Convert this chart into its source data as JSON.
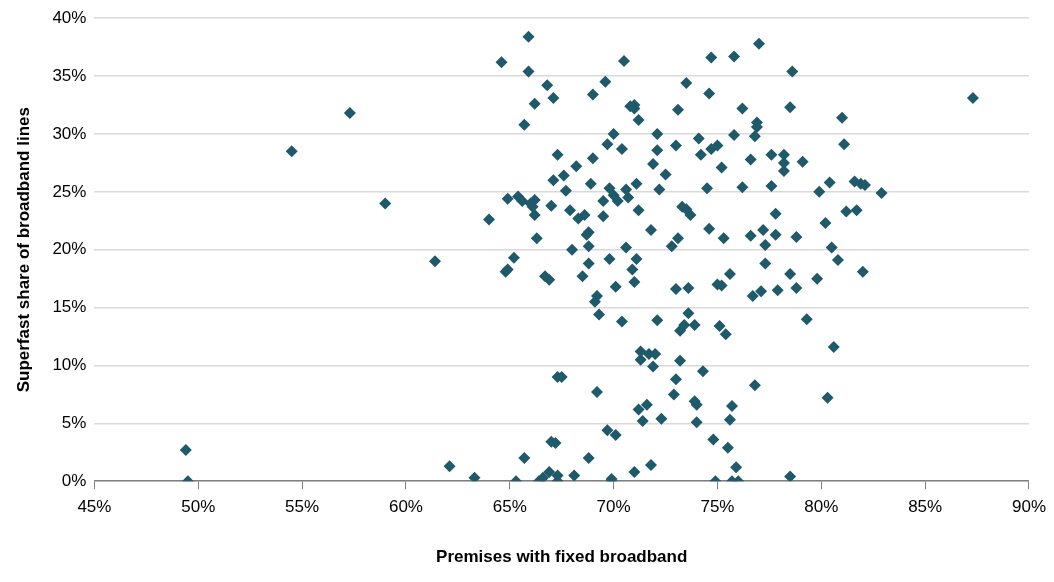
{
  "chart_data": {
    "type": "scatter",
    "xlabel": "Premises with fixed broadband",
    "ylabel": "Superfast share of broadband lines",
    "xlim": [
      45,
      90
    ],
    "ylim": [
      0,
      40
    ],
    "xticks": [
      {
        "value": 45,
        "label": "45%"
      },
      {
        "value": 50,
        "label": "50%"
      },
      {
        "value": 55,
        "label": "55%"
      },
      {
        "value": 60,
        "label": "60%"
      },
      {
        "value": 65,
        "label": "65%"
      },
      {
        "value": 70,
        "label": "70%"
      },
      {
        "value": 75,
        "label": "75%"
      },
      {
        "value": 80,
        "label": "80%"
      },
      {
        "value": 85,
        "label": "85%"
      },
      {
        "value": 90,
        "label": "90%"
      }
    ],
    "yticks": [
      {
        "value": 0,
        "label": "0%"
      },
      {
        "value": 5,
        "label": "5%"
      },
      {
        "value": 10,
        "label": "10%"
      },
      {
        "value": 15,
        "label": "15%"
      },
      {
        "value": 20,
        "label": "20%"
      },
      {
        "value": 25,
        "label": "25%"
      },
      {
        "value": 30,
        "label": "30%"
      },
      {
        "value": 35,
        "label": "35%"
      },
      {
        "value": 40,
        "label": "40%"
      }
    ],
    "grid": "y",
    "legend": false,
    "marker": "diamond",
    "series": [
      {
        "color": "#1f5a6a",
        "x": [
          49.4,
          49.5,
          54.5,
          57.3,
          59.0,
          61.4,
          62.1,
          63.3,
          64.0,
          64.6,
          64.9,
          64.8,
          64.9,
          65.2,
          65.3,
          65.4,
          65.6,
          65.7,
          65.7,
          65.9,
          65.9,
          66.0,
          66.1,
          66.2,
          66.2,
          66.2,
          66.3,
          66.4,
          66.6,
          66.7,
          66.8,
          66.9,
          67.0,
          67.0,
          66.9,
          67.1,
          67.1,
          67.2,
          67.3,
          67.3,
          67.3,
          67.3,
          67.5,
          67.6,
          67.7,
          67.9,
          68.0,
          68.1,
          68.2,
          68.3,
          68.5,
          68.6,
          68.7,
          68.8,
          68.8,
          68.8,
          68.8,
          68.9,
          69.0,
          69.0,
          69.1,
          69.2,
          69.2,
          69.3,
          69.5,
          69.5,
          69.6,
          69.7,
          69.7,
          69.8,
          69.8,
          69.9,
          69.9,
          70.0,
          70.0,
          70.1,
          70.1,
          70.2,
          70.4,
          70.4,
          70.5,
          70.6,
          70.6,
          70.7,
          70.8,
          70.9,
          71.0,
          71.0,
          71.0,
          71.0,
          71.1,
          71.1,
          71.2,
          71.2,
          71.2,
          71.3,
          71.3,
          71.4,
          71.6,
          71.7,
          71.8,
          71.8,
          71.9,
          71.9,
          72.0,
          72.1,
          72.1,
          72.1,
          72.2,
          72.3,
          72.5,
          72.8,
          72.9,
          73.0,
          73.0,
          73.0,
          73.1,
          73.1,
          73.2,
          73.2,
          73.3,
          73.4,
          73.5,
          73.5,
          73.6,
          73.6,
          73.7,
          73.9,
          73.9,
          74.0,
          74.0,
          74.1,
          74.2,
          74.3,
          74.5,
          74.6,
          74.6,
          74.7,
          74.7,
          74.8,
          74.9,
          75.0,
          75.0,
          75.1,
          75.2,
          75.2,
          75.3,
          75.4,
          75.5,
          75.6,
          75.6,
          75.7,
          75.7,
          75.8,
          75.8,
          75.9,
          76.0,
          76.2,
          76.2,
          76.6,
          76.6,
          76.7,
          76.8,
          76.8,
          76.9,
          76.9,
          77.0,
          77.1,
          77.2,
          77.3,
          77.3,
          77.6,
          77.6,
          77.8,
          77.8,
          77.9,
          78.2,
          78.2,
          78.2,
          78.5,
          78.5,
          78.5,
          78.6,
          78.8,
          78.8,
          79.1,
          79.3,
          79.8,
          79.9,
          80.2,
          80.3,
          80.4,
          80.5,
          80.6,
          80.8,
          81.0,
          81.1,
          81.2,
          81.6,
          81.9,
          82.1,
          82.0,
          81.7,
          82.9,
          87.3
        ],
        "values": [
          2.7,
          0,
          28.5,
          31.8,
          24.0,
          19.0,
          1.3,
          0.3,
          22.6,
          36.2,
          24.4,
          18.1,
          18.3,
          19.3,
          0,
          24.6,
          24.2,
          2.0,
          30.8,
          38.4,
          35.4,
          24.0,
          23.7,
          32.6,
          24.3,
          23.0,
          21.0,
          0,
          0.3,
          17.7,
          34.2,
          17.4,
          23.8,
          3.4,
          0.8,
          33.1,
          26.0,
          3.3,
          28.2,
          0.5,
          0,
          9.0,
          9.0,
          26.4,
          25.1,
          23.4,
          20.0,
          0.5,
          27.2,
          22.7,
          17.7,
          23.0,
          21.3,
          20.3,
          21.5,
          18.8,
          2.0,
          25.7,
          27.9,
          33.4,
          15.5,
          7.7,
          16.0,
          14.4,
          24.2,
          22.9,
          34.5,
          29.1,
          4.4,
          19.2,
          25.3,
          0.2,
          0,
          30.0,
          24.7,
          4.0,
          16.8,
          24.2,
          13.8,
          28.7,
          36.3,
          20.2,
          25.2,
          24.5,
          32.4,
          18.3,
          17.2,
          32.5,
          32.2,
          0.8,
          19.2,
          25.7,
          6.2,
          23.4,
          31.2,
          11.2,
          10.5,
          5.2,
          6.6,
          11.0,
          1.4,
          21.7,
          27.4,
          9.9,
          11.0,
          13.9,
          30.0,
          28.6,
          25.2,
          5.4,
          26.5,
          20.3,
          7.5,
          8.8,
          29.0,
          16.6,
          32.1,
          21.0,
          13.0,
          10.4,
          23.7,
          13.5,
          34.4,
          23.5,
          14.5,
          16.7,
          23.0,
          13.5,
          6.9,
          6.6,
          5.1,
          29.6,
          28.2,
          9.5,
          25.3,
          21.8,
          33.5,
          28.7,
          36.6,
          3.6,
          0,
          29.0,
          17.0,
          13.4,
          16.9,
          27.1,
          21.0,
          12.7,
          2.9,
          17.9,
          5.3,
          0,
          6.5,
          36.7,
          29.9,
          1.2,
          0,
          32.2,
          25.4,
          27.8,
          21.2,
          16.0,
          29.8,
          8.3,
          31.0,
          30.6,
          37.8,
          16.4,
          21.7,
          20.4,
          18.8,
          28.2,
          25.5,
          23.1,
          21.3,
          16.5,
          27.5,
          28.2,
          26.8,
          32.3,
          17.9,
          0.4,
          35.4,
          21.1,
          16.7,
          27.6,
          14.0,
          17.5,
          25.0,
          22.3,
          7.2,
          25.8,
          20.2,
          11.6,
          19.1,
          31.4,
          29.1,
          23.3,
          25.9,
          25.7,
          25.6,
          18.1,
          23.4,
          24.9,
          33.1
        ]
      }
    ]
  }
}
